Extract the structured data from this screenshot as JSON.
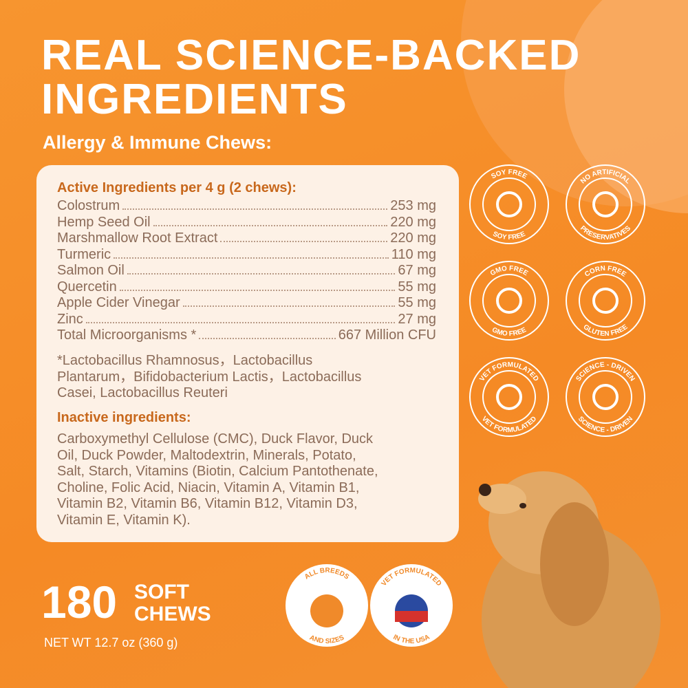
{
  "header": {
    "title": [
      "REAL SCIENCE-BACKED",
      "INGREDIENTS"
    ],
    "subtitle": "Allergy & Immune Chews:"
  },
  "panel": {
    "active_heading": "Active Ingredients per 4 g (2 chews):",
    "active": [
      [
        "Colostrum",
        "253 mg"
      ],
      [
        "Hemp Seed Oil",
        "220 mg"
      ],
      [
        "Marshmallow Root Extract",
        "220 mg"
      ],
      [
        "Turmeric",
        "110 mg"
      ],
      [
        "Salmon Oil",
        "67 mg"
      ],
      [
        "Quercetin",
        "55 mg"
      ],
      [
        "Apple Cider Vinegar",
        "55 mg"
      ],
      [
        "Zinc",
        "27 mg"
      ],
      [
        "Total Microorganisms *",
        "667 Million CFU"
      ]
    ],
    "footnote": [
      "*Lactobacillus Rhamnosus，Lactobacillus",
      "Plantarum，Bifidobacterium Lactis，Lactobacillus",
      "Casei, Lactobacillus Reuteri"
    ],
    "inactive_heading": "Inactive ingredients:",
    "inactive": [
      "Carboxymethyl Cellulose (CMC), Duck Flavor, Duck",
      "Oil, Duck Powder, Maltodextrin, Minerals, Potato,",
      "Salt, Starch, Vitamins (Biotin, Calcium Pantothenate,",
      "Choline, Folic Acid, Niacin, Vitamin A, Vitamin B1,",
      "Vitamin B2, Vitamin B6, Vitamin B12, Vitamin D3,",
      "Vitamin E, Vitamin K)."
    ]
  },
  "badges": [
    {
      "top": "SOY FREE",
      "bottom": "SOY FREE"
    },
    {
      "top": "NO ARTIFICIAL",
      "bottom": "PRESERVATIVES"
    },
    {
      "top": "GMO FREE",
      "bottom": "GMO FREE"
    },
    {
      "top": "CORN FREE",
      "bottom": "GLUTEN FREE"
    },
    {
      "top": "VET FORMULATED",
      "bottom": "VET FORMULATED"
    },
    {
      "top": "SCIENCE - DRIVEN",
      "bottom": "SCIENCE - DRIVEN"
    }
  ],
  "count": {
    "number": "180",
    "unit": [
      "SOFT",
      "CHEWS"
    ],
    "net_weight": "NET WT 12.7 oz (360 g)"
  },
  "seals": [
    {
      "top": "ALL BREEDS",
      "bottom": "AND SIZES"
    },
    {
      "top": "VET FORMULATED",
      "bottom": "IN THE USA"
    }
  ]
}
